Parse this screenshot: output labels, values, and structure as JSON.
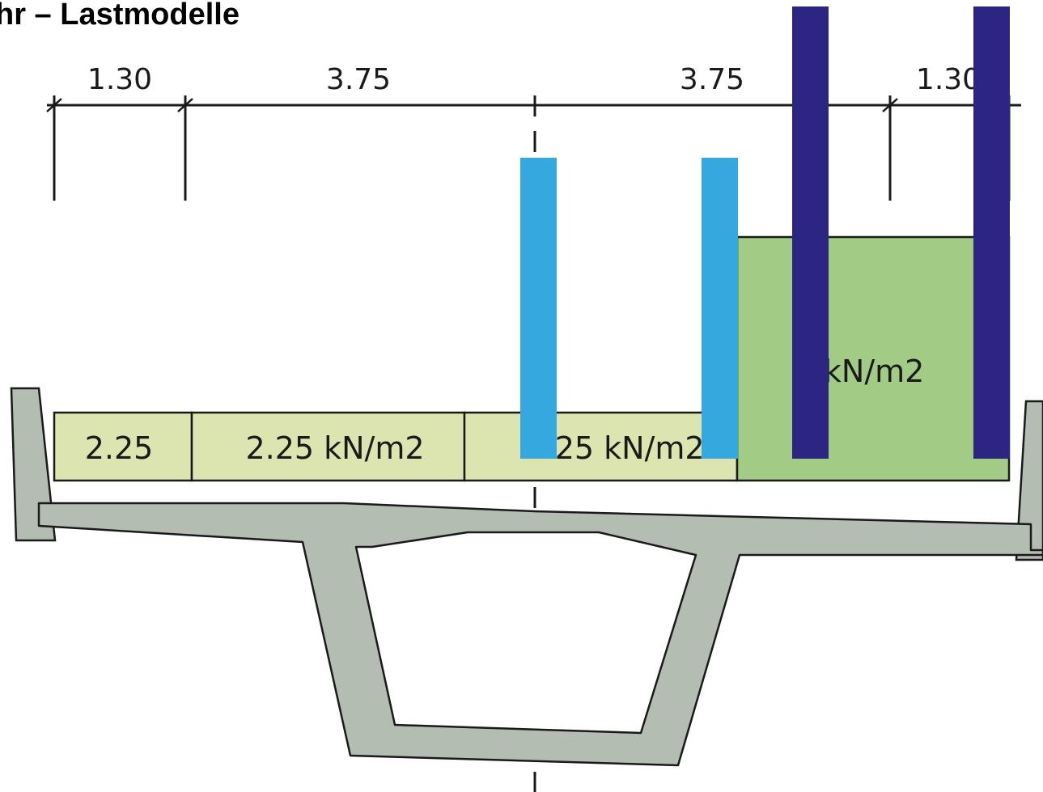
{
  "title": "hr – Lastmodelle",
  "dimensions": [
    "1.30",
    "3.75",
    "3.75",
    "1.30"
  ],
  "loads": {
    "zone1": "2.25",
    "zone2": "2.25 kN/m2",
    "zone3": "2.25 kN/m2",
    "zone4": "8 kN/m2"
  },
  "colors": {
    "light_load": "#dce5b0",
    "heavy_load": "#a2cc85",
    "axle_light": "#35a8df",
    "axle_heavy": "#2c2581",
    "concrete": "#b4bdb2",
    "outline": "#1a1a1a"
  }
}
